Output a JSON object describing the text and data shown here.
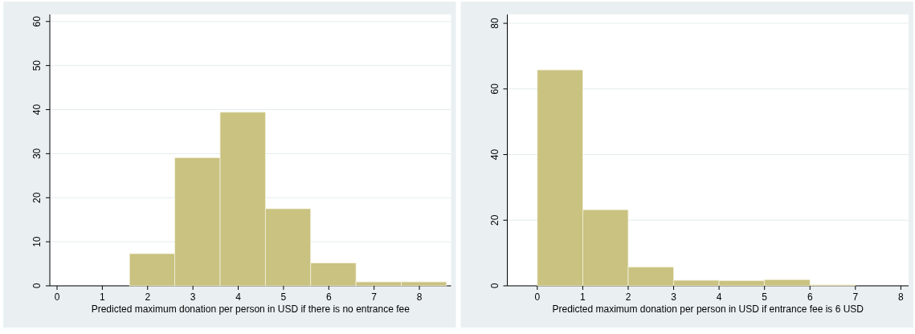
{
  "chart_data": [
    {
      "type": "histogram",
      "xlabel": "Predicted maximum donation per person in USD if there is no entrance fee",
      "bins": [
        1.6,
        2.6,
        3.6,
        4.6,
        5.6,
        6.6,
        7.6,
        8.6
      ],
      "values": [
        7.3,
        29.1,
        39.4,
        17.5,
        5.2,
        0.9,
        0.9
      ],
      "color": "#c9c280",
      "xlim": [
        -0.16,
        8.7
      ],
      "xticks": [
        0,
        1,
        2,
        3,
        4,
        5,
        6,
        7,
        8
      ],
      "ylim": [
        0,
        61.6
      ],
      "yticks": [
        0,
        10,
        20,
        30,
        40,
        50,
        60
      ],
      "grid": "y"
    },
    {
      "type": "histogram",
      "xlabel": "Predicted maximum donation per person in USD if entrance fee is 6 USD",
      "bins": [
        0,
        1,
        2,
        3,
        4,
        5,
        6,
        7
      ],
      "values": [
        65.8,
        23.2,
        5.7,
        1.7,
        1.6,
        1.9,
        0.3
      ],
      "color": "#c9c280",
      "xlim": [
        -0.66,
        8.17
      ],
      "xticks": [
        0,
        1,
        2,
        3,
        4,
        5,
        6,
        7,
        8
      ],
      "ylim": [
        0,
        82.7
      ],
      "yticks": [
        0,
        20,
        40,
        60,
        80
      ],
      "grid": "y"
    }
  ]
}
